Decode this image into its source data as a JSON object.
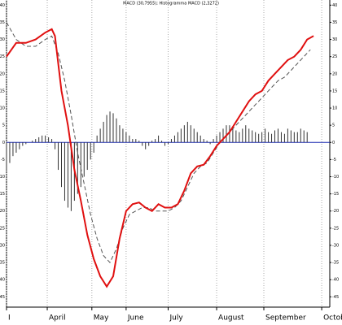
{
  "chart_data": {
    "type": "line",
    "title": "MACD (30,7955); Histogramma MACD (2,3272)",
    "xlim": [
      0,
      100
    ],
    "ylim": [
      -48,
      41.5
    ],
    "xticks": [
      {
        "value": 0,
        "label": "I"
      },
      {
        "value": 12.6,
        "label": "April"
      },
      {
        "value": 26.4,
        "label": "May"
      },
      {
        "value": 37,
        "label": "June"
      },
      {
        "value": 50,
        "label": "July"
      },
      {
        "value": 65,
        "label": "August"
      },
      {
        "value": 79.6,
        "label": "September"
      },
      {
        "value": 97.5,
        "label": "Octob"
      }
    ],
    "yticks": [
      -45,
      -40,
      -35,
      -30,
      -25,
      -20,
      -15,
      -10,
      -5,
      0,
      5,
      10,
      15,
      20,
      25,
      30,
      35,
      40
    ],
    "grid": true,
    "series": [
      {
        "kind": "bar",
        "color": "#333333",
        "x": [
          0,
          1,
          2,
          3,
          4,
          5,
          6,
          7,
          8,
          9,
          10,
          11,
          12,
          13,
          14,
          15,
          16,
          17,
          18,
          19,
          20,
          21,
          22,
          23,
          24,
          25,
          26,
          27,
          28,
          29,
          30,
          31,
          32,
          33,
          34,
          35,
          36,
          37,
          38,
          39,
          40,
          41,
          42,
          43,
          44,
          45,
          46,
          47,
          48,
          49,
          50,
          51,
          52,
          53,
          54,
          55,
          56,
          57,
          58,
          59,
          60,
          61,
          62,
          63,
          64,
          65,
          66,
          67,
          68,
          69,
          70,
          71,
          72,
          73,
          74,
          75,
          76,
          77,
          78,
          79,
          80,
          81,
          82,
          83,
          84,
          85,
          86,
          87,
          88,
          89,
          90,
          91,
          92,
          93
        ],
        "values": [
          -8,
          -6,
          -4,
          -3,
          -2,
          -1,
          -0.5,
          0,
          0.5,
          1,
          1.5,
          2,
          2,
          1.5,
          1,
          -2,
          -8,
          -13,
          -17,
          -19,
          -20,
          -17,
          -15,
          -13,
          -10,
          -8,
          -5,
          -3,
          2,
          4,
          6,
          8,
          9,
          8.5,
          7,
          5,
          4,
          3,
          2,
          1,
          1,
          0.5,
          -1,
          -2,
          -1,
          0.5,
          1,
          2,
          0.5,
          -1,
          -0.5,
          1,
          2,
          3,
          4,
          5,
          6,
          5,
          4,
          3,
          2,
          1,
          0.5,
          -0.5,
          1,
          2,
          3,
          4,
          5,
          5,
          4,
          3.5,
          3,
          4,
          5,
          4,
          3.5,
          3,
          2.5,
          3,
          4,
          3,
          2.5,
          3.5,
          4,
          3,
          2.5,
          4,
          3.5,
          3,
          3,
          4,
          3.5,
          3
        ]
      },
      {
        "kind": "line",
        "color": "#555555",
        "dash": true,
        "x": [
          0,
          3,
          6,
          9,
          12,
          14,
          16,
          18,
          20,
          22,
          24,
          26,
          28,
          30,
          32,
          34,
          36,
          38,
          40,
          42,
          44,
          46,
          48,
          50,
          52,
          54,
          56,
          58,
          60,
          62,
          64,
          66,
          68,
          70,
          72,
          74,
          76,
          78,
          80,
          82,
          84,
          86,
          88,
          90,
          92,
          94
        ],
        "values": [
          35,
          30,
          28,
          28,
          30,
          31,
          26,
          18,
          8,
          -3,
          -12,
          -21,
          -28,
          -33,
          -35,
          -31,
          -25,
          -21,
          -20,
          -19,
          -19,
          -20,
          -20,
          -20,
          -19,
          -17,
          -13,
          -9,
          -7,
          -6,
          -3,
          0,
          2,
          4,
          6,
          8,
          10,
          12,
          14,
          16,
          18,
          19,
          21,
          23,
          25,
          27
        ]
      },
      {
        "kind": "line",
        "color": "#e01010",
        "dash": false,
        "x": [
          0,
          3,
          6,
          9,
          12,
          14,
          15,
          17,
          19,
          21,
          23,
          25,
          27,
          29,
          31,
          33,
          35,
          37,
          39,
          41,
          43,
          45,
          47,
          49,
          51,
          53,
          55,
          57,
          59,
          61,
          63,
          65,
          67,
          69,
          71,
          73,
          75,
          77,
          79,
          81,
          83,
          85,
          87,
          89,
          91,
          93,
          95
        ],
        "values": [
          25,
          29,
          29,
          30,
          32,
          33,
          31,
          15,
          5,
          -8,
          -17,
          -27,
          -34,
          -39,
          -42,
          -39,
          -28,
          -20,
          -18,
          -17.5,
          -19,
          -20,
          -18,
          -19,
          -19,
          -18,
          -14,
          -9,
          -7,
          -6.5,
          -4,
          -1,
          1,
          3,
          6,
          9,
          12,
          14,
          15,
          18,
          20,
          22,
          24,
          25,
          27,
          30,
          31
        ]
      }
    ]
  }
}
